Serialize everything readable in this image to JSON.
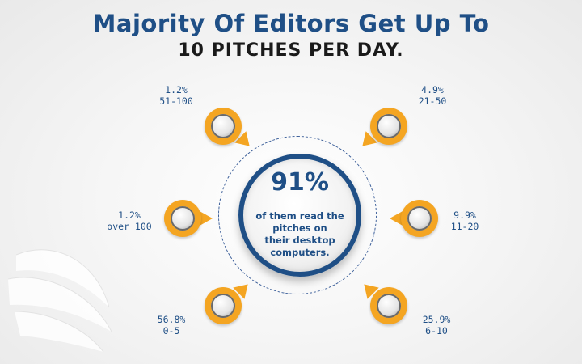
{
  "title": "Majority Of Editors Get Up To",
  "subtitle": "10 PITCHES PER DAY.",
  "center": {
    "percent": "91%",
    "lines": [
      "of them read the",
      "pitches on",
      "their desktop",
      "computers."
    ]
  },
  "colors": {
    "accent": "#1f4f86",
    "pin": "#f4a522",
    "text": "#1a1a1a"
  },
  "chart_data": {
    "type": "table",
    "categories": [
      "51-100",
      "21-50",
      "over 100",
      "11-20",
      "0-5",
      "6-10"
    ],
    "values": [
      1.2,
      4.9,
      1.2,
      9.9,
      56.8,
      25.9
    ],
    "value_labels": [
      "1.2%",
      "4.9%",
      "1.2%",
      "9.9%",
      "56.8%",
      "25.9%"
    ]
  }
}
